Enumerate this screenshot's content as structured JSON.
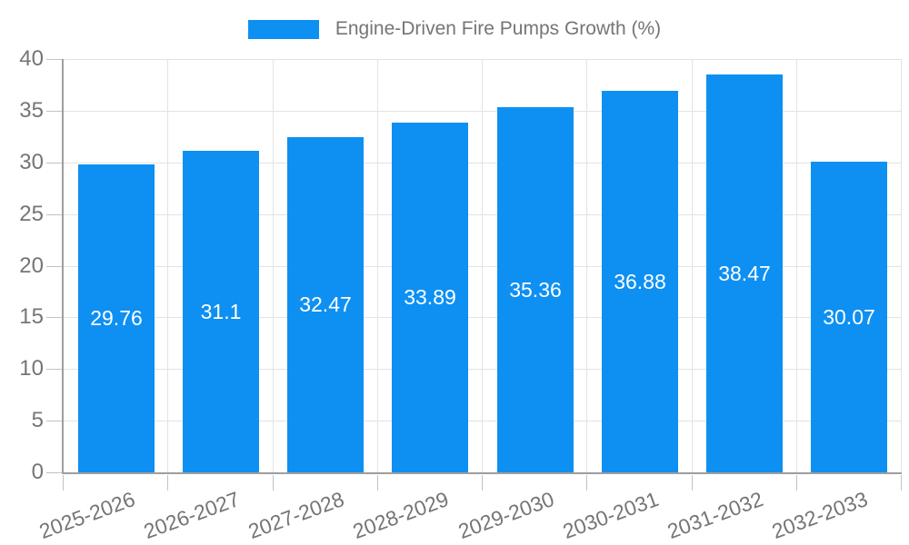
{
  "chart_data": {
    "type": "bar",
    "title": "Engine-Driven Fire Pumps Growth (%)",
    "legend_label": "Engine-Driven Fire Pumps Growth (%)",
    "categories": [
      "2025-2026",
      "2026-2027",
      "2027-2028",
      "2028-2029",
      "2029-2030",
      "2030-2031",
      "2031-2032",
      "2032-2033"
    ],
    "values": [
      29.76,
      31.1,
      32.47,
      33.89,
      35.36,
      36.88,
      38.47,
      30.07
    ],
    "xlabel": "",
    "ylabel": "",
    "ylim": [
      0,
      40
    ],
    "yticks": [
      0,
      5,
      10,
      15,
      20,
      25,
      30,
      35,
      40
    ],
    "grid": true,
    "legend_position": "top-center",
    "value_label_position": "inside-center",
    "x_label_rotation_deg": -20,
    "colors": {
      "bar": "#0E90F2",
      "grid": "#e3e3e3",
      "axis": "#9e9e9e",
      "tick": "#c2c2c2",
      "text": "#757575",
      "value_label": "#ffffff",
      "background": "#ffffff"
    }
  }
}
